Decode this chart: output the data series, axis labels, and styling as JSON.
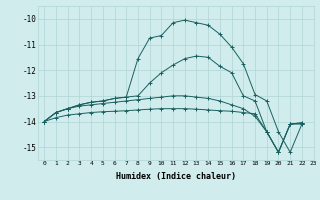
{
  "xlabel": "Humidex (Indice chaleur)",
  "bg_color": "#d0ecec",
  "grid_color": "#b0d4d4",
  "line_color": "#1a6060",
  "xlim": [
    -0.5,
    23
  ],
  "ylim": [
    -15.5,
    -9.5
  ],
  "yticks": [
    -15,
    -14,
    -13,
    -12,
    -11,
    -10
  ],
  "xticks": [
    0,
    1,
    2,
    3,
    4,
    5,
    6,
    7,
    8,
    9,
    10,
    11,
    12,
    13,
    14,
    15,
    16,
    17,
    18,
    19,
    20,
    21,
    22,
    23
  ],
  "curve1_x": [
    0,
    1,
    2,
    3,
    4,
    5,
    6,
    7,
    8,
    9,
    10,
    11,
    12,
    13,
    14,
    15,
    16,
    17,
    18,
    19,
    20,
    21,
    22
  ],
  "curve1_y": [
    -14.0,
    -13.65,
    -13.5,
    -13.35,
    -13.25,
    -13.2,
    -13.1,
    -13.05,
    -11.55,
    -10.75,
    -10.65,
    -10.15,
    -10.05,
    -10.15,
    -10.25,
    -10.6,
    -11.1,
    -11.75,
    -12.95,
    -13.2,
    -14.4,
    -15.2,
    -14.1
  ],
  "curve2_x": [
    0,
    1,
    2,
    3,
    4,
    5,
    6,
    7,
    8,
    9,
    10,
    11,
    12,
    13,
    14,
    15,
    16,
    17,
    18,
    19,
    20,
    21,
    22
  ],
  "curve2_y": [
    -14.0,
    -13.65,
    -13.5,
    -13.35,
    -13.25,
    -13.2,
    -13.1,
    -13.05,
    -13.0,
    -12.5,
    -12.1,
    -11.8,
    -11.55,
    -11.45,
    -11.5,
    -11.85,
    -12.1,
    -13.0,
    -13.2,
    -14.4,
    -15.2,
    -14.1,
    -14.1
  ],
  "curve3_x": [
    0,
    1,
    2,
    3,
    4,
    5,
    6,
    7,
    8,
    9,
    10,
    11,
    12,
    13,
    14,
    15,
    16,
    17,
    18,
    19,
    20,
    21,
    22
  ],
  "curve3_y": [
    -14.0,
    -13.65,
    -13.5,
    -13.4,
    -13.35,
    -13.3,
    -13.25,
    -13.2,
    -13.15,
    -13.1,
    -13.05,
    -13.0,
    -13.0,
    -13.05,
    -13.1,
    -13.2,
    -13.35,
    -13.5,
    -13.8,
    -14.4,
    -15.2,
    -14.1,
    -14.05
  ],
  "curve4_x": [
    0,
    1,
    2,
    3,
    4,
    5,
    6,
    7,
    8,
    9,
    10,
    11,
    12,
    13,
    14,
    15,
    16,
    17,
    18,
    19,
    20,
    21,
    22
  ],
  "curve4_y": [
    -14.0,
    -13.85,
    -13.75,
    -13.7,
    -13.65,
    -13.62,
    -13.6,
    -13.58,
    -13.55,
    -13.52,
    -13.5,
    -13.5,
    -13.5,
    -13.52,
    -13.55,
    -13.58,
    -13.6,
    -13.65,
    -13.7,
    -14.4,
    -15.2,
    -14.1,
    -14.05
  ]
}
